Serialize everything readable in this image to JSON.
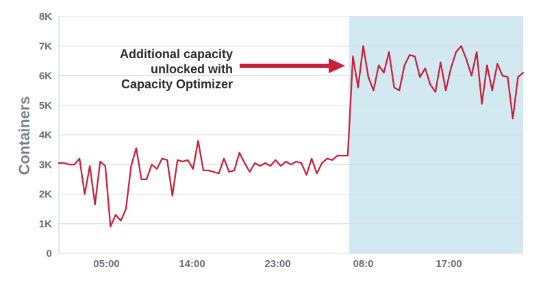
{
  "chart_data": {
    "type": "line",
    "ylabel": "Containers",
    "xlabel": "",
    "title": "",
    "ylim": [
      0,
      8000
    ],
    "y_ticks": [
      {
        "value": 0,
        "label": "0"
      },
      {
        "value": 1000,
        "label": "1K"
      },
      {
        "value": 2000,
        "label": "2K"
      },
      {
        "value": 3000,
        "label": "3K"
      },
      {
        "value": 4000,
        "label": "4K"
      },
      {
        "value": 5000,
        "label": "5K"
      },
      {
        "value": 6000,
        "label": "6K"
      },
      {
        "value": 7000,
        "label": "7K"
      },
      {
        "value": 8000,
        "label": "8K"
      }
    ],
    "x_ticks": [
      {
        "index": 5,
        "label": "05:00"
      },
      {
        "index": 14,
        "label": "14:00"
      },
      {
        "index": 23,
        "label": "23:00"
      },
      {
        "index": 32,
        "label": "08:0"
      },
      {
        "index": 41,
        "label": "17:00"
      }
    ],
    "x_range": [
      0,
      48.8
    ],
    "grid": true,
    "highlight": {
      "from": 30.5,
      "to": 48.8,
      "color": "#d3e9f1"
    },
    "line_color": "#c8203a",
    "series": [
      {
        "values": [
          3050,
          3050,
          3000,
          3000,
          3200,
          2000,
          2950,
          1650,
          3100,
          2950,
          900,
          1300,
          1100,
          1500,
          2950,
          3550,
          2500,
          2500,
          3000,
          2850,
          3200,
          3150,
          1950,
          3150,
          3100,
          3150,
          2850,
          3800,
          2800,
          2800,
          2750,
          2700,
          3200,
          2750,
          2800,
          3400,
          3050,
          2750,
          3050,
          2950,
          3050,
          2950,
          3150,
          2950,
          3100,
          3000,
          3100,
          3050,
          2650,
          3200,
          2700,
          3050,
          3200,
          3150,
          3300,
          3300,
          3300,
          6650,
          5600,
          7000,
          5950,
          5500,
          6350,
          6100,
          6800,
          5600,
          5500,
          6350,
          6700,
          6650,
          5950,
          6250,
          5700,
          5450,
          6450,
          5500,
          6250,
          6800,
          7000,
          6550,
          6000,
          6800,
          5050,
          6350,
          5500,
          6400,
          6000,
          5950,
          4550,
          5950,
          6100
        ]
      }
    ],
    "annotation": {
      "lines": [
        "Additional capacity",
        "unlocked with",
        "Capacity Optimizer"
      ],
      "arrow_color": "#c8203a"
    }
  }
}
